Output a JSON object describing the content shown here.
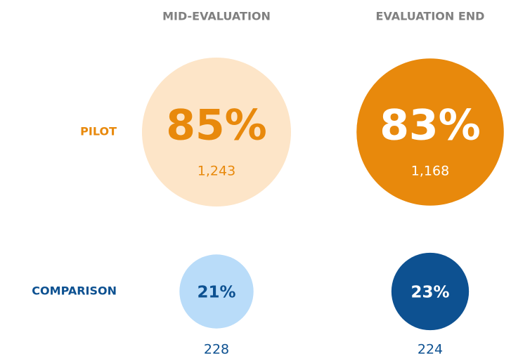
{
  "columns": [
    "MID-EVALUATION",
    "EVALUATION END"
  ],
  "rows": [
    {
      "label": "PILOT",
      "color": "#e8890c",
      "cells": [
        {
          "percent": 85,
          "percent_label": "85%",
          "count": 1243,
          "count_label": "1,243",
          "fill": "#fde5c8",
          "text_color": "#e8890c"
        },
        {
          "percent": 83,
          "percent_label": "83%",
          "count": 1168,
          "count_label": "1,168",
          "fill": "#e8890c",
          "text_color": "#ffffff"
        }
      ]
    },
    {
      "label": "COMPARISON",
      "color": "#0d5191",
      "cells": [
        {
          "percent": 21,
          "percent_label": "21%",
          "count": 228,
          "count_label": "228",
          "fill": "#b9dcf9",
          "text_color": "#0d5191"
        },
        {
          "percent": 23,
          "percent_label": "23%",
          "count": 224,
          "count_label": "224",
          "fill": "#0d5191",
          "text_color": "#ffffff"
        }
      ]
    }
  ]
}
